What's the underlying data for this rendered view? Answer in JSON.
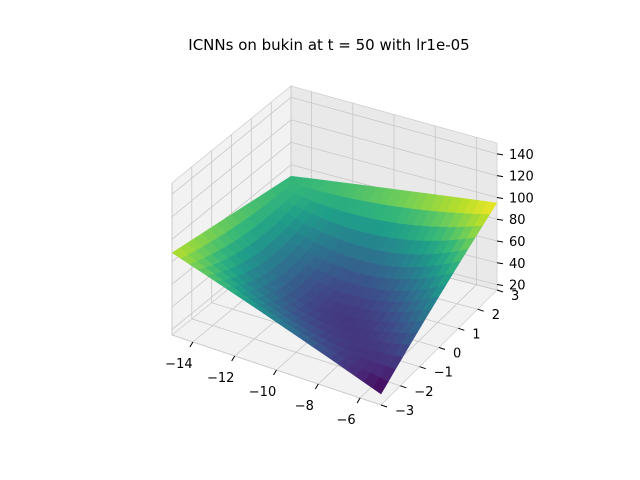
{
  "chart_data": {
    "type": "surface3d",
    "title": "ICNNs on bukin at t = 50 with lr1e-05",
    "xlabel": "",
    "ylabel": "",
    "zlabel": "",
    "x_range": [
      -15,
      -5
    ],
    "y_range": [
      -3,
      3
    ],
    "z_range": [
      15,
      150
    ],
    "xticks": [
      {
        "value": -14,
        "label": "−14"
      },
      {
        "value": -12,
        "label": "−12"
      },
      {
        "value": -10,
        "label": "−10"
      },
      {
        "value": -8,
        "label": "−8"
      },
      {
        "value": -6,
        "label": "−6"
      }
    ],
    "yticks": [
      {
        "value": -3,
        "label": "−3"
      },
      {
        "value": -2,
        "label": "−2"
      },
      {
        "value": -1,
        "label": "−1"
      },
      {
        "value": 0,
        "label": "0"
      },
      {
        "value": 1,
        "label": "1"
      },
      {
        "value": 2,
        "label": "2"
      },
      {
        "value": 3,
        "label": "3"
      }
    ],
    "zticks": [
      {
        "value": 20,
        "label": "20"
      },
      {
        "value": 40,
        "label": "40"
      },
      {
        "value": 60,
        "label": "60"
      },
      {
        "value": 80,
        "label": "80"
      },
      {
        "value": 100,
        "label": "100"
      },
      {
        "value": 120,
        "label": "120"
      },
      {
        "value": 140,
        "label": "140"
      }
    ],
    "surface_corners": {
      "x_min_y_min": 88,
      "x_min_y_max": 70,
      "x_max_y_min": 24,
      "x_max_y_max": 95,
      "minimum": 17
    },
    "colormap": "viridis",
    "grid": true
  }
}
